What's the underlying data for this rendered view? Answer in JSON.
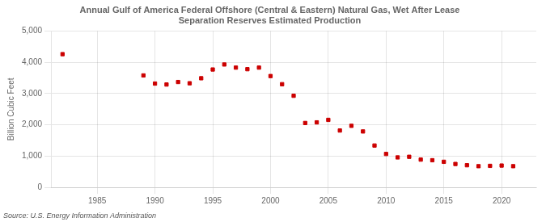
{
  "chart_data": {
    "type": "scatter",
    "title": "Annual Gulf of America Federal Offshore (Central & Eastern) Natural Gas, Wet After Lease\nSeparation Reserves Estimated Production",
    "ylabel": "Billion Cubic Feet",
    "annotations": [
      "Source: U.S. Energy Information Administration"
    ],
    "color": "#cc0000",
    "marker": "square",
    "grid": true,
    "x": [
      1982,
      1989,
      1990,
      1991,
      1992,
      1993,
      1994,
      1995,
      1996,
      1997,
      1998,
      1999,
      2000,
      2001,
      2002,
      2003,
      2004,
      2005,
      2006,
      2007,
      2008,
      2009,
      2010,
      2011,
      2012,
      2013,
      2014,
      2015,
      2016,
      2017,
      2018,
      2019,
      2020,
      2021
    ],
    "values": [
      4260,
      3580,
      3320,
      3290,
      3370,
      3330,
      3490,
      3770,
      3930,
      3830,
      3780,
      3830,
      3560,
      3300,
      2930,
      2060,
      2080,
      2160,
      1820,
      1970,
      1790,
      1340,
      1070,
      960,
      980,
      890,
      870,
      820,
      750,
      710,
      680,
      690,
      700,
      680
    ],
    "xlim": [
      1981,
      2023
    ],
    "xticks": [
      1985,
      1990,
      1995,
      2000,
      2005,
      2010,
      2015,
      2020
    ],
    "ylim": [
      0,
      5000
    ],
    "yticks": [
      0,
      {
        "value": 1000,
        "label": "1,000"
      },
      {
        "value": 2000,
        "label": "2,000"
      },
      {
        "value": 3000,
        "label": "3,000"
      },
      {
        "value": 4000,
        "label": "4,000"
      },
      {
        "value": 5000,
        "label": "5,000"
      }
    ]
  }
}
